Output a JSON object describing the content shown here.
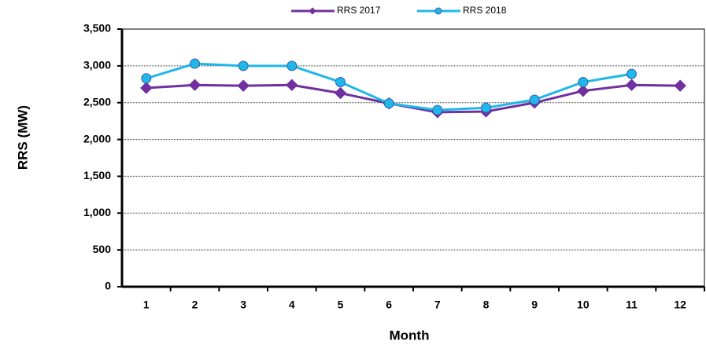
{
  "chart_data": {
    "type": "line",
    "x_label": "Month",
    "y_label": "RRS (MW)",
    "categories": [
      "1",
      "2",
      "3",
      "4",
      "5",
      "6",
      "7",
      "8",
      "9",
      "10",
      "11",
      "12"
    ],
    "series": [
      {
        "name": "RRS 2017",
        "color": "#7030a0",
        "marker": "diamond",
        "values": [
          2700,
          2740,
          2730,
          2740,
          2630,
          2490,
          2370,
          2380,
          2500,
          2660,
          2740,
          2730
        ]
      },
      {
        "name": "RRS 2018",
        "color": "#1fb7e9",
        "marker": "circle",
        "values": [
          2830,
          3030,
          3000,
          3000,
          2780,
          2490,
          2400,
          2430,
          2540,
          2780,
          2890,
          null
        ]
      }
    ],
    "ylim": [
      0,
      3500
    ],
    "yticks": [
      0,
      500,
      {
        "value": 1000,
        "label": "1,000"
      },
      {
        "value": 1500,
        "label": "1,500"
      },
      {
        "value": 2000,
        "label": "2,000"
      },
      {
        "value": 2500,
        "label": "2,500"
      },
      {
        "value": 3000,
        "label": "3,000"
      },
      {
        "value": 3500,
        "label": "3,500"
      }
    ],
    "grid": true,
    "legend": "top"
  }
}
